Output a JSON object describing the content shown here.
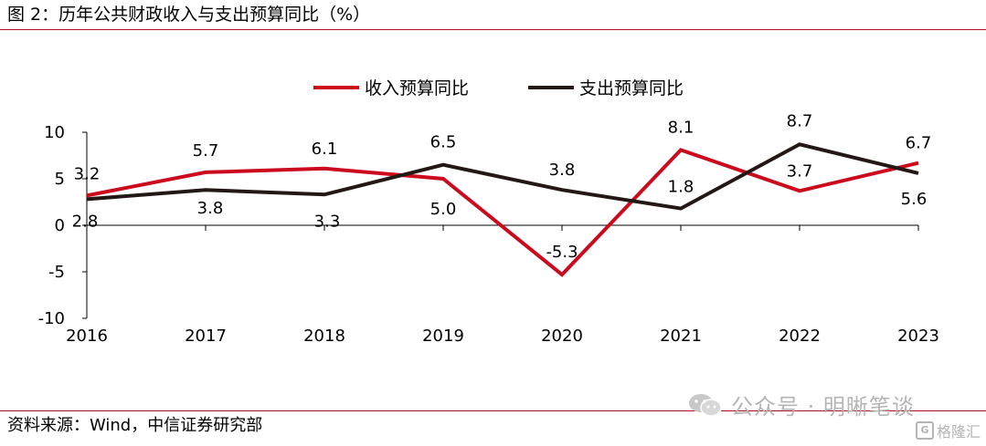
{
  "figure": {
    "title": "图 2：历年公共财政收入与支出预算同比（%）",
    "source": "资料来源：Wind，中信证券研究部",
    "watermark": "公众号 · 明晰笔谈",
    "badge": "格隆汇"
  },
  "colors": {
    "accent": "#b30d23",
    "revenue": "#cc0a1e",
    "expenditure": "#231815"
  },
  "chart_data": {
    "type": "line",
    "x": [
      "2016",
      "2017",
      "2018",
      "2019",
      "2020",
      "2021",
      "2022",
      "2023"
    ],
    "ylim": [
      -10,
      10
    ],
    "yticks": [
      10,
      5,
      0,
      -5,
      -10
    ],
    "legend_position": "top-center",
    "grid": false,
    "series": [
      {
        "name": "收入预算同比",
        "color": "#cc0a1e",
        "values": [
          3.2,
          5.7,
          6.1,
          5.0,
          -5.3,
          8.1,
          3.7,
          6.7
        ],
        "labels": [
          "3.2",
          "5.7",
          "6.1",
          "5.0",
          "-5.3",
          "8.1",
          "3.7",
          "6.7"
        ]
      },
      {
        "name": "支出预算同比",
        "color": "#231815",
        "values": [
          2.8,
          3.8,
          3.3,
          6.5,
          3.8,
          1.8,
          8.7,
          5.6
        ],
        "labels": [
          "2.8",
          "3.8",
          "3.3",
          "6.5",
          "3.8",
          "1.8",
          "8.7",
          "5.6"
        ]
      }
    ]
  }
}
